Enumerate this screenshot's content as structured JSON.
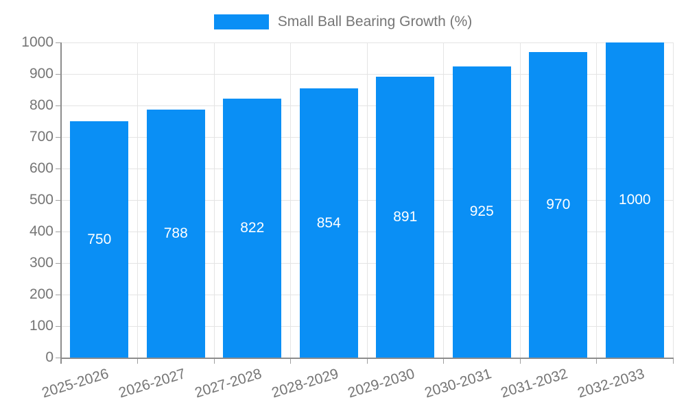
{
  "chart_data": {
    "type": "bar",
    "title": "Small Ball Bearing Growth (%)",
    "categories": [
      "2025-2026",
      "2026-2027",
      "2027-2028",
      "2028-2029",
      "2029-2030",
      "2030-2031",
      "2031-2032",
      "2032-2033"
    ],
    "values": [
      750,
      788,
      822,
      854,
      891,
      925,
      970,
      1000
    ],
    "xlabel": "",
    "ylabel": "",
    "ylim": [
      0,
      1000
    ],
    "ytick_step": 100,
    "ytick_labels": [
      "0",
      "100",
      "200",
      "300",
      "400",
      "500",
      "600",
      "700",
      "800",
      "900",
      "1000"
    ],
    "legend_position": "top",
    "legend_entries": [
      "Small Ball Bearing Growth (%)"
    ],
    "grid": true,
    "xtick_rotation_deg": -17,
    "bar_color": "#0a8ff5",
    "value_label_color": "#ffffff",
    "axis_text_color": "#757575",
    "gridline_color": "#e4e4e4"
  }
}
